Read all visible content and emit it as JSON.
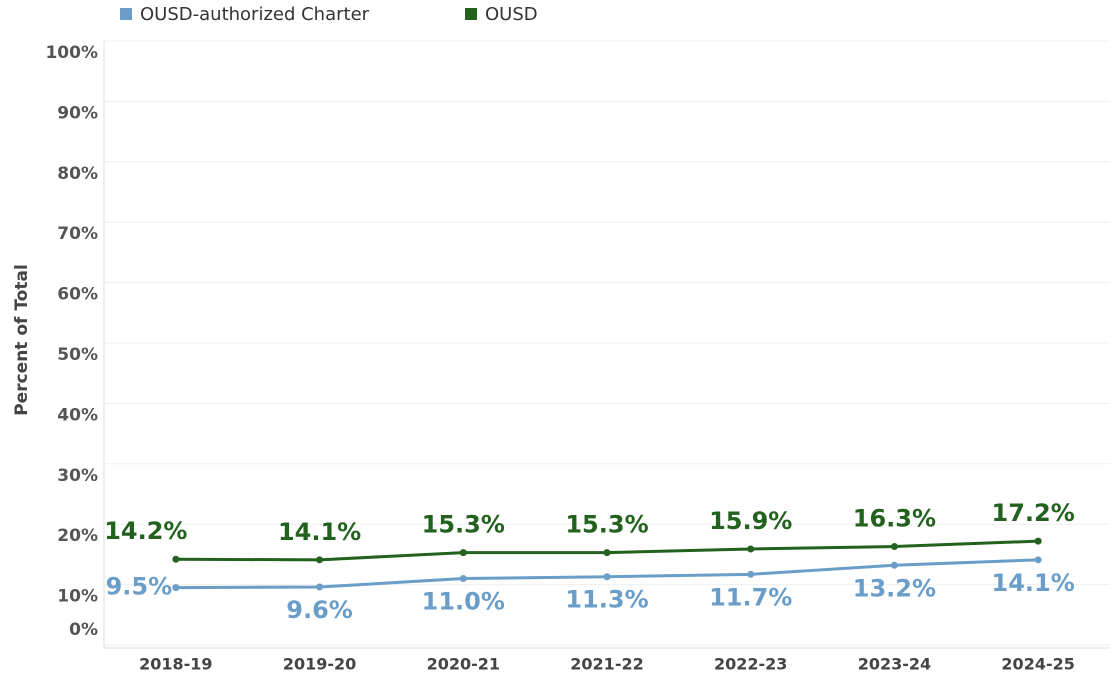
{
  "chart_data": {
    "type": "line",
    "ylabel": "Percent of Total",
    "categories": [
      "2018-19",
      "2019-20",
      "2020-21",
      "2021-22",
      "2022-23",
      "2023-24",
      "2024-25"
    ],
    "series": [
      {
        "name": "OUSD-authorized Charter",
        "color": "#6a9ec8",
        "values": [
          9.5,
          9.6,
          11.0,
          11.3,
          11.7,
          13.2,
          14.1
        ],
        "value_labels": [
          "9.5%",
          "9.6%",
          "11.0%",
          "11.3%",
          "11.7%",
          "13.2%",
          "14.1%"
        ]
      },
      {
        "name": "OUSD",
        "color": "#23611f",
        "values": [
          14.2,
          14.1,
          15.3,
          15.3,
          15.9,
          16.3,
          17.2
        ],
        "value_labels": [
          "14.2%",
          "14.1%",
          "15.3%",
          "15.3%",
          "15.9%",
          "16.3%",
          "17.2%"
        ]
      }
    ],
    "ylim": [
      0,
      100
    ],
    "yticks": [
      {
        "value": 0,
        "label": "0%"
      },
      {
        "value": 10,
        "label": "10%"
      },
      {
        "value": 20,
        "label": "20%"
      },
      {
        "value": 30,
        "label": "30%"
      },
      {
        "value": 40,
        "label": "40%"
      },
      {
        "value": 50,
        "label": "50%"
      },
      {
        "value": 60,
        "label": "60%"
      },
      {
        "value": 70,
        "label": "70%"
      },
      {
        "value": 80,
        "label": "80%"
      },
      {
        "value": 90,
        "label": "90%"
      },
      {
        "value": 100,
        "label": "100%"
      }
    ],
    "grid": true
  }
}
